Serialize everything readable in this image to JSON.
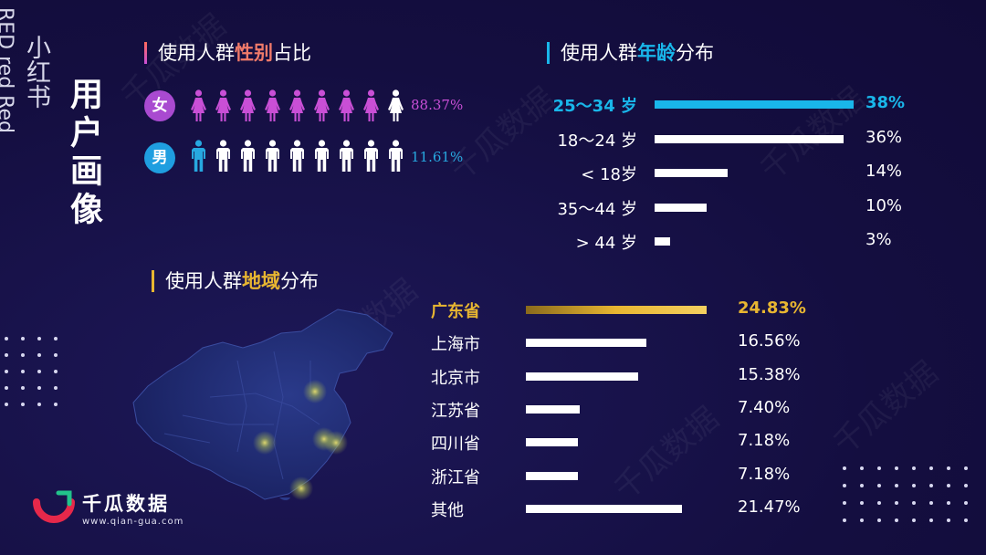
{
  "brand": {
    "cn": "小红书",
    "en": "RED red Red"
  },
  "portrait_title": "用户画像",
  "gender": {
    "title_prefix": "使用人群",
    "title_highlight": "性别",
    "title_suffix": "占比",
    "female": {
      "badge": "女",
      "pct_label": "88.37%",
      "color": "#c94fd6",
      "filled": 8,
      "total": 9
    },
    "male": {
      "badge": "男",
      "pct_label": "11.61%",
      "color": "#27a8e0",
      "filled": 1,
      "total": 9
    }
  },
  "age": {
    "title_prefix": "使用人群",
    "title_highlight": "年龄",
    "title_suffix": "分布",
    "accent": "#19b6ea"
  },
  "region": {
    "title_prefix": "使用人群",
    "title_highlight": "地域",
    "title_suffix": "分布",
    "accent": "#e8b631"
  },
  "chart_data": [
    {
      "type": "bar",
      "title": "使用人群年龄分布",
      "categories": [
        "25～34 岁",
        "18～24 岁",
        "< 18岁",
        "35～44 岁",
        "> 44 岁"
      ],
      "values": [
        38,
        36,
        14,
        10,
        3
      ],
      "value_labels": [
        "38%",
        "36%",
        "14%",
        "10%",
        "3%"
      ],
      "highlight_index": 0
    },
    {
      "type": "bar",
      "title": "使用人群地域分布",
      "categories": [
        "广东省",
        "上海市",
        "北京市",
        "江苏省",
        "四川省",
        "浙江省",
        "其他"
      ],
      "values": [
        24.83,
        16.56,
        15.38,
        7.4,
        7.18,
        7.18,
        21.47
      ],
      "value_labels": [
        "24.83%",
        "16.56%",
        "15.38%",
        "7.40%",
        "7.18%",
        "7.18%",
        "21.47%"
      ],
      "highlight_index": 0
    }
  ],
  "logo": {
    "name": "千瓜数据",
    "url": "www.qian-gua.com"
  }
}
